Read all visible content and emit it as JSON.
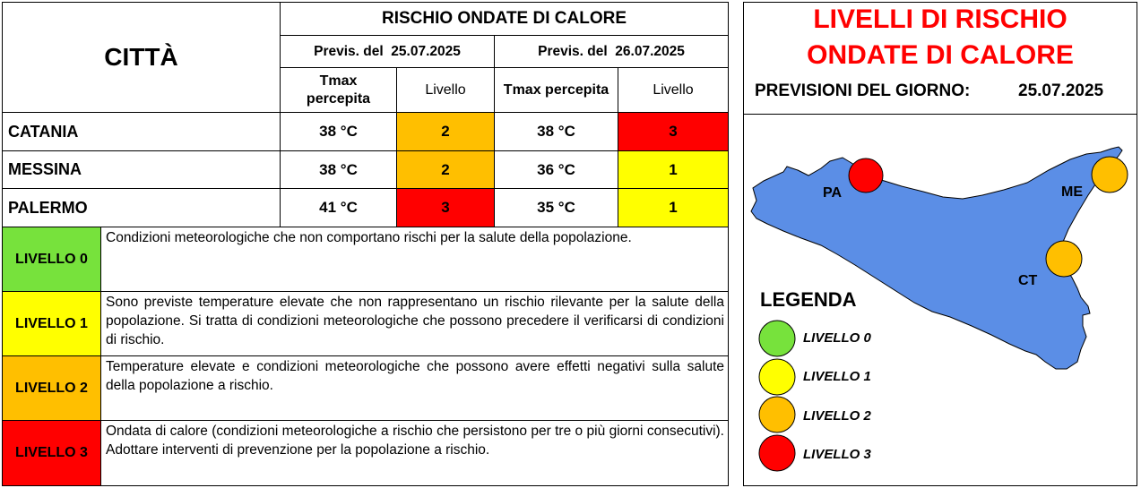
{
  "table": {
    "city_header": "CITTÀ",
    "title": "RISCHIO ONDATE DI CALORE",
    "forecast1": "Previs. del  25.07.2025",
    "forecast2": "Previs. del  26.07.2025",
    "col_tmax_line1": "Tmax",
    "col_tmax_line2": "percepita",
    "col_tmax2": "Tmax percepita",
    "col_livello": "Livello",
    "rows": [
      {
        "city": "CATANIA",
        "t1": "38 °C",
        "l1": "2",
        "t2": "38 °C",
        "l2": "3"
      },
      {
        "city": "MESSINA",
        "t1": "38 °C",
        "l1": "2",
        "t2": "36 °C",
        "l2": "1"
      },
      {
        "city": "PALERMO",
        "t1": "41 °C",
        "l1": "3",
        "t2": "35 °C",
        "l2": "1"
      }
    ]
  },
  "levels": [
    {
      "label": "LIVELLO 0",
      "desc": "Condizioni meteorologiche che non comportano rischi per la salute della popolazione."
    },
    {
      "label": "LIVELLO 1",
      "desc": "Sono previste temperature elevate che non rappresentano un rischio rilevante per la salute della popolazione. Si tratta di condizioni meteorologiche che possono precedere il verificarsi di condizioni di rischio."
    },
    {
      "label": "LIVELLO 2",
      "desc": "Temperature elevate e condizioni meteorologiche che possono avere effetti negativi sulla salute della popolazione a rischio."
    },
    {
      "label": "LIVELLO 3",
      "desc": "Ondata di calore (condizioni meteorologiche a rischio che persistono per tre o più giorni consecutivi). Adottare interventi di prevenzione per la popolazione a rischio."
    }
  ],
  "level_colors": {
    "0": "#77e23c",
    "1": "#ffff00",
    "2": "#ffbf00",
    "3": "#ff0000"
  },
  "panel": {
    "title_line1": "LIVELLI DI RISCHIO",
    "title_line2": "ONDATE DI CALORE",
    "forecast_label": "PREVISIONI DEL GIORNO:",
    "forecast_date": "25.07.2025"
  },
  "map": {
    "island_color": "#5b8ee6",
    "cities": [
      {
        "code": "PA",
        "level": 3
      },
      {
        "code": "ME",
        "level": 2
      },
      {
        "code": "CT",
        "level": 2
      }
    ],
    "legend_title": "LEGENDA",
    "legend": [
      "LIVELLO 0",
      "LIVELLO 1",
      "LIVELLO 2",
      "LIVELLO 3"
    ]
  }
}
